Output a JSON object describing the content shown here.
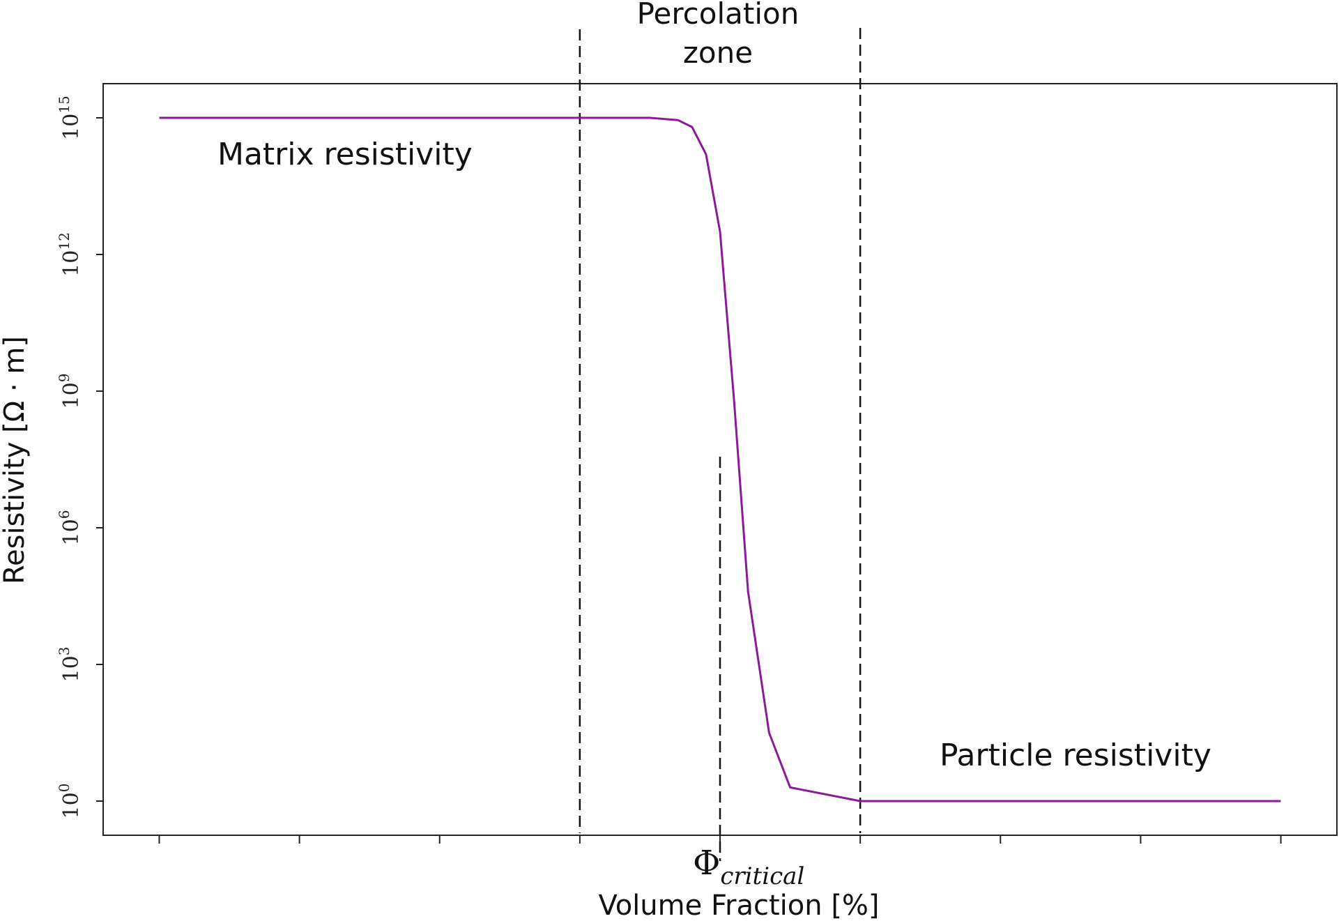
{
  "chart_data": {
    "type": "line",
    "title": "",
    "xlabel": "Volume Fraction [%]",
    "ylabel": "Resistivity [Ω · m]",
    "y_scale": "log",
    "ylim_exponent": [
      -0.75,
      15.75
    ],
    "y_ticks": [
      {
        "base": "10",
        "exp": "0",
        "value": 1
      },
      {
        "base": "10",
        "exp": "3",
        "value": 1000
      },
      {
        "base": "10",
        "exp": "6",
        "value": 1000000
      },
      {
        "base": "10",
        "exp": "9",
        "value": 1000000000
      },
      {
        "base": "10",
        "exp": "12",
        "value": 1000000000000
      },
      {
        "base": "10",
        "exp": "15",
        "value": 1000000000000000
      }
    ],
    "x_ticks_count": 9,
    "xlim": [
      -0.4,
      8.4
    ],
    "grid": false,
    "series": [
      {
        "color": "#8B1A99",
        "x": [
          0,
          1,
          2,
          3,
          3.5,
          3.7,
          3.8,
          3.9,
          4.0,
          4.1,
          4.2,
          4.35,
          4.5,
          5,
          6,
          7,
          8
        ],
        "y_exponent": [
          15,
          15,
          15,
          15,
          15,
          14.95,
          14.8,
          14.2,
          12.5,
          8.8,
          4.6,
          1.5,
          0.3,
          0,
          0,
          0,
          0
        ]
      }
    ],
    "vlines": [
      {
        "x": 3.0,
        "style": "dashed"
      },
      {
        "x": 4.0,
        "style": "dashed"
      },
      {
        "x": 5.0,
        "style": "dashed"
      }
    ],
    "annotations": {
      "percolation_line1": "Percolation",
      "percolation_line2": "zone",
      "matrix": "Matrix resistivity",
      "particle": "Particle resistivity",
      "phi_symbol": "Φ",
      "phi_subscript": "critical"
    }
  }
}
